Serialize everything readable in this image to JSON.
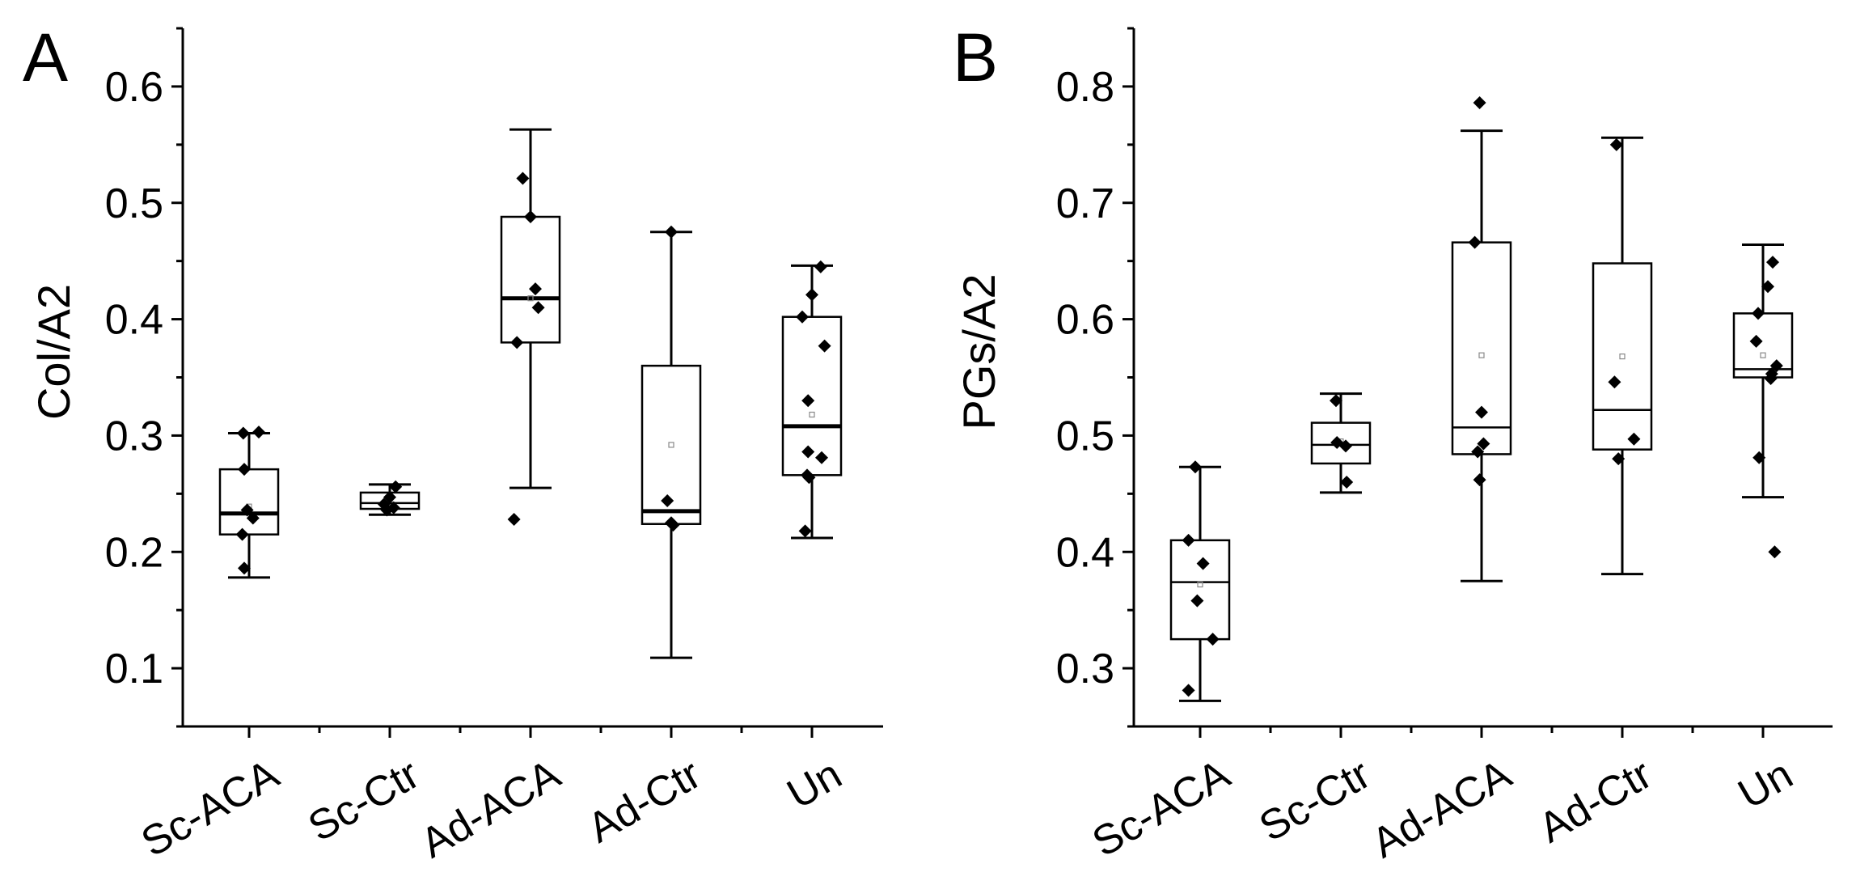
{
  "chart_data": [
    {
      "type": "box",
      "panel": "A",
      "ylabel": "Col/A2",
      "xlabel": "",
      "ylim": [
        0.05,
        0.65
      ],
      "yticks": [
        0.1,
        0.2,
        0.3,
        0.4,
        0.5,
        0.6
      ],
      "ytick_labels": [
        "0.1",
        "0.2",
        "0.3",
        "0.4",
        "0.5",
        "0.6"
      ],
      "categories": [
        "Sc-ACA",
        "Sc-Ctr",
        "Ad-ACA",
        "Ad-Ctr",
        "Un"
      ],
      "boxes": [
        {
          "whisker_low": 0.178,
          "q1": 0.215,
          "median": 0.233,
          "q3": 0.271,
          "whisker_high": 0.302,
          "mean": 0.239,
          "thick_median": true,
          "points": [
            [
              -0.06,
              0.302
            ],
            [
              0.1,
              0.303
            ],
            [
              -0.05,
              0.271
            ],
            [
              -0.02,
              0.236
            ],
            [
              0.04,
              0.229
            ],
            [
              -0.07,
              0.215
            ],
            [
              -0.05,
              0.186
            ]
          ]
        },
        {
          "whisker_low": 0.232,
          "q1": 0.237,
          "median": 0.242,
          "q3": 0.251,
          "whisker_high": 0.258,
          "mean": 0.245,
          "thick_median": false,
          "points": [
            [
              0.06,
              0.256
            ],
            [
              0.0,
              0.247
            ],
            [
              -0.06,
              0.241
            ],
            [
              0.04,
              0.238
            ],
            [
              -0.03,
              0.236
            ]
          ]
        },
        {
          "whisker_low": 0.255,
          "q1": 0.38,
          "median": 0.418,
          "q3": 0.488,
          "whisker_high": 0.563,
          "mean": 0.418,
          "thick_median": true,
          "points": [
            [
              -0.08,
              0.521
            ],
            [
              0.0,
              0.488
            ],
            [
              0.05,
              0.426
            ],
            [
              0.08,
              0.41
            ],
            [
              -0.14,
              0.38
            ],
            [
              -0.17,
              0.228
            ]
          ]
        },
        {
          "whisker_low": 0.109,
          "q1": 0.224,
          "median": 0.235,
          "q3": 0.36,
          "whisker_high": 0.475,
          "mean": 0.292,
          "thick_median": true,
          "points": [
            [
              0.0,
              0.475
            ],
            [
              -0.04,
              0.244
            ],
            [
              0.0,
              0.225
            ],
            [
              0.02,
              0.223
            ]
          ]
        },
        {
          "whisker_low": 0.212,
          "q1": 0.266,
          "median": 0.308,
          "q3": 0.402,
          "whisker_high": 0.446,
          "mean": 0.318,
          "thick_median": true,
          "points": [
            [
              0.09,
              0.445
            ],
            [
              0.0,
              0.421
            ],
            [
              -0.1,
              0.402
            ],
            [
              0.13,
              0.377
            ],
            [
              -0.04,
              0.33
            ],
            [
              -0.04,
              0.286
            ],
            [
              0.1,
              0.281
            ],
            [
              -0.05,
              0.266
            ],
            [
              -0.03,
              0.264
            ],
            [
              -0.07,
              0.218
            ]
          ]
        }
      ]
    },
    {
      "type": "box",
      "panel": "B",
      "ylabel": "PGs/A2",
      "xlabel": "",
      "ylim": [
        0.25,
        0.85
      ],
      "yticks": [
        0.3,
        0.4,
        0.5,
        0.6,
        0.7,
        0.8
      ],
      "ytick_labels": [
        "0.3",
        "0.4",
        "0.5",
        "0.6",
        "0.7",
        "0.8"
      ],
      "categories": [
        "Sc-ACA",
        "Sc-Ctr",
        "Ad-ACA",
        "Ad-Ctr",
        "Un"
      ],
      "boxes": [
        {
          "whisker_low": 0.272,
          "q1": 0.325,
          "median": 0.374,
          "q3": 0.41,
          "whisker_high": 0.473,
          "mean": 0.372,
          "thick_median": false,
          "points": [
            [
              -0.05,
              0.473
            ],
            [
              -0.12,
              0.41
            ],
            [
              0.03,
              0.39
            ],
            [
              -0.03,
              0.358
            ],
            [
              0.13,
              0.325
            ],
            [
              -0.12,
              0.281
            ]
          ]
        },
        {
          "whisker_low": 0.451,
          "q1": 0.476,
          "median": 0.492,
          "q3": 0.511,
          "whisker_high": 0.536,
          "mean": 0.495,
          "thick_median": false,
          "points": [
            [
              -0.05,
              0.53
            ],
            [
              -0.04,
              0.494
            ],
            [
              0.05,
              0.491
            ],
            [
              0.06,
              0.46
            ]
          ]
        },
        {
          "whisker_low": 0.375,
          "q1": 0.484,
          "median": 0.507,
          "q3": 0.666,
          "whisker_high": 0.762,
          "mean": 0.569,
          "thick_median": false,
          "points": [
            [
              -0.02,
              0.786
            ],
            [
              -0.07,
              0.666
            ],
            [
              0.0,
              0.52
            ],
            [
              0.02,
              0.493
            ],
            [
              -0.04,
              0.486
            ],
            [
              -0.02,
              0.462
            ]
          ]
        },
        {
          "whisker_low": 0.381,
          "q1": 0.488,
          "median": 0.522,
          "q3": 0.648,
          "whisker_high": 0.756,
          "mean": 0.568,
          "thick_median": false,
          "points": [
            [
              -0.06,
              0.75
            ],
            [
              -0.08,
              0.546
            ],
            [
              0.12,
              0.497
            ],
            [
              -0.04,
              0.48
            ]
          ]
        },
        {
          "whisker_low": 0.447,
          "q1": 0.55,
          "median": 0.557,
          "q3": 0.605,
          "whisker_high": 0.664,
          "mean": 0.569,
          "thick_median": false,
          "points": [
            [
              0.1,
              0.649
            ],
            [
              0.05,
              0.628
            ],
            [
              -0.05,
              0.605
            ],
            [
              -0.07,
              0.581
            ],
            [
              0.14,
              0.56
            ],
            [
              0.09,
              0.553
            ],
            [
              0.08,
              0.549
            ],
            [
              -0.04,
              0.481
            ],
            [
              0.12,
              0.4
            ]
          ]
        }
      ]
    }
  ]
}
